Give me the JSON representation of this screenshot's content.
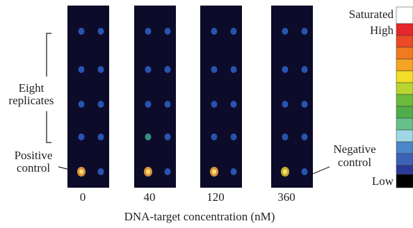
{
  "panels": [
    {
      "label": "0"
    },
    {
      "label": "40"
    },
    {
      "label": "120"
    },
    {
      "label": "360"
    }
  ],
  "x_axis_label": "DNA-target concentration (nM)",
  "annotations": {
    "replicates": [
      "Eight",
      "replicates"
    ],
    "positive": [
      "Positive",
      "control"
    ],
    "negative": [
      "Negative",
      "control"
    ]
  },
  "colorbar": {
    "top": "Saturated",
    "high": "High",
    "low": "Low"
  }
}
